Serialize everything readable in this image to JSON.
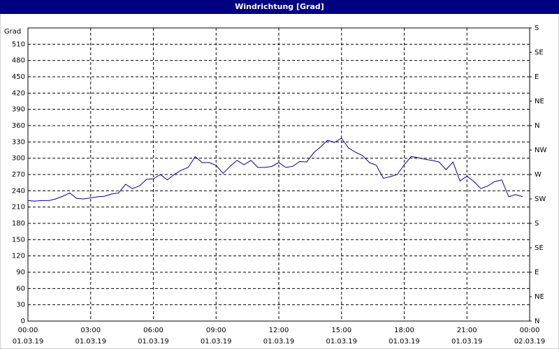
{
  "window_title": "Windrichtung [Grad]",
  "chart_data": {
    "type": "line",
    "ylabel": "Grad",
    "x": [
      0,
      20,
      40,
      60,
      80,
      100,
      120,
      140,
      160,
      180,
      200,
      220,
      240,
      260,
      280,
      300,
      320,
      340,
      360,
      380,
      400,
      420,
      440,
      460,
      480,
      500,
      520,
      540,
      560,
      580,
      600,
      620,
      640,
      660,
      680,
      700,
      720,
      740,
      760,
      780,
      800,
      820,
      840,
      860,
      880,
      900,
      920,
      940,
      960,
      980,
      1000,
      1020,
      1040,
      1060,
      1080,
      1100,
      1120,
      1140,
      1160,
      1180,
      1200,
      1220,
      1240,
      1260,
      1280,
      1300,
      1320,
      1340,
      1360,
      1380,
      1400,
      1420
    ],
    "series": [
      {
        "name": "Windrichtung",
        "color": "#0000a0",
        "values": [
          222,
          221,
          222,
          222,
          225,
          230,
          236,
          226,
          225,
          227,
          229,
          230,
          234,
          236,
          252,
          244,
          249,
          261,
          262,
          270,
          260,
          270,
          278,
          283,
          303,
          292,
          292,
          287,
          272,
          285,
          296,
          288,
          296,
          283,
          283,
          285,
          292,
          283,
          285,
          294,
          293,
          310,
          321,
          333,
          329,
          337,
          319,
          311,
          305,
          292,
          287,
          263,
          266,
          270,
          288,
          303,
          301,
          298,
          296,
          293,
          279,
          293,
          258,
          267,
          257,
          244,
          249,
          257,
          260,
          229,
          233,
          229
        ]
      }
    ],
    "xlim": [
      0,
      1440
    ],
    "xticks": [
      {
        "value": 0,
        "label": "00:00",
        "date": "01.03.19"
      },
      {
        "value": 180,
        "label": "03:00",
        "date": "01.03.19"
      },
      {
        "value": 360,
        "label": "06:00",
        "date": "01.03.19"
      },
      {
        "value": 540,
        "label": "09:00",
        "date": "01.03.19"
      },
      {
        "value": 720,
        "label": "12:00",
        "date": "01.03.19"
      },
      {
        "value": 900,
        "label": "15:00",
        "date": "01.03.19"
      },
      {
        "value": 1080,
        "label": "18:00",
        "date": "01.03.19"
      },
      {
        "value": 1260,
        "label": "21:00",
        "date": "01.03.19"
      },
      {
        "value": 1440,
        "label": "00:00",
        "date": "02.03.19"
      }
    ],
    "ylim": [
      0,
      540
    ],
    "yticks": [
      0,
      30,
      60,
      90,
      120,
      150,
      180,
      210,
      240,
      270,
      300,
      330,
      360,
      390,
      420,
      450,
      480,
      510
    ],
    "y2lim": [
      0,
      540
    ],
    "y2ticks": [
      {
        "value": 0,
        "label": "N"
      },
      {
        "value": 45,
        "label": "NE"
      },
      {
        "value": 90,
        "label": "E"
      },
      {
        "value": 135,
        "label": "SE"
      },
      {
        "value": 180,
        "label": "S"
      },
      {
        "value": 225,
        "label": "SW"
      },
      {
        "value": 270,
        "label": "W"
      },
      {
        "value": 315,
        "label": "NW"
      },
      {
        "value": 360,
        "label": "N"
      },
      {
        "value": 405,
        "label": "NE"
      },
      {
        "value": 450,
        "label": "E"
      },
      {
        "value": 495,
        "label": "SE"
      },
      {
        "value": 540,
        "label": "S"
      }
    ],
    "grid": true
  }
}
